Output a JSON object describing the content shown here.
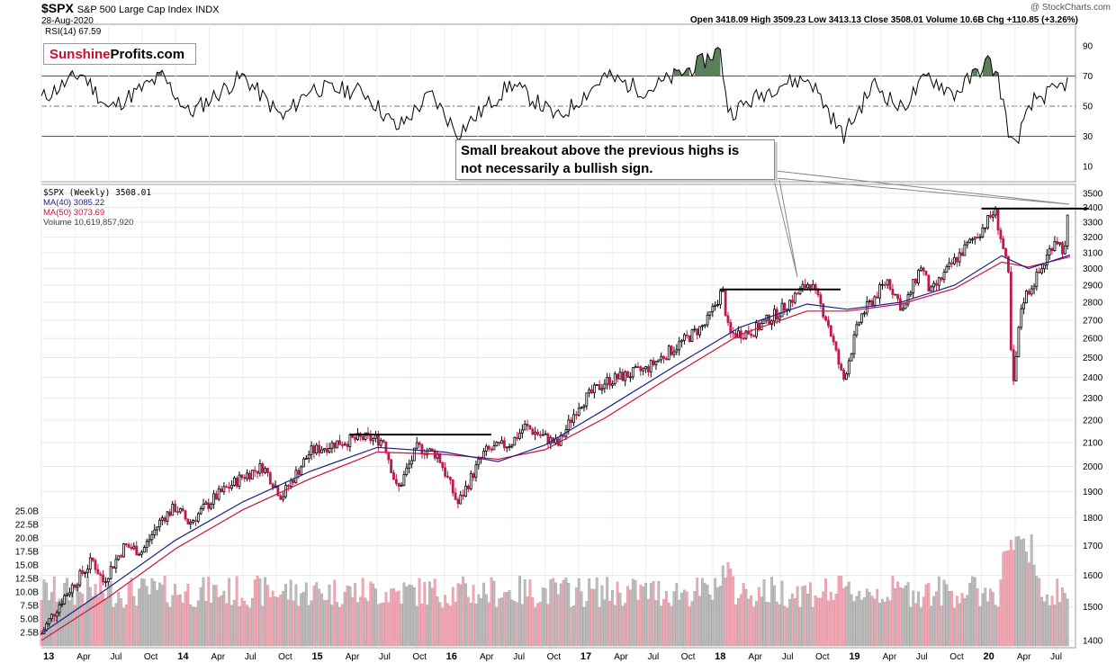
{
  "header": {
    "symbol": "$SPX",
    "name": "S&P 500 Large Cap Index",
    "exchange": "INDX",
    "date": "28-Aug-2020",
    "credit": "@ StockCharts.com",
    "ohlc": "Open 3418.09  High 3509.23  Low 3413.13  Close 3508.01  Volume 10.6B  Chg +110.85 (+3.26%)"
  },
  "logo": {
    "part1": "Sunshine",
    "part2": "Profits.com"
  },
  "rsi": {
    "label": "RSI(14) 67.59",
    "ticks": [
      90,
      70,
      50,
      30,
      10
    ]
  },
  "legend": {
    "price": "$SPX (Weekly) 3508.01",
    "ma40": "MA(40) 3085.22",
    "ma50": "MA(50) 3073.69",
    "volume": "Volume 10,619,857,920"
  },
  "annotation": {
    "line1": "Small breakout above the previous highs is",
    "line2": "not necessarily a bullish sign."
  },
  "colors": {
    "ma40": "#1f1f8f",
    "ma50": "#d01040",
    "up": "#000000",
    "down": "#c0184a",
    "rsi_fill": "#5a7f5a"
  },
  "chart_data": {
    "type": "line",
    "x_ticks": [
      "13",
      "Apr",
      "Jul",
      "Oct",
      "14",
      "Apr",
      "Jul",
      "Oct",
      "15",
      "Apr",
      "Jul",
      "Oct",
      "16",
      "Apr",
      "Jul",
      "Oct",
      "17",
      "Apr",
      "Jul",
      "Oct",
      "18",
      "Apr",
      "Jul",
      "Oct",
      "19",
      "Apr",
      "Jul",
      "Oct",
      "20",
      "Apr",
      "Jul"
    ],
    "price_ticks": [
      3500,
      3400,
      3300,
      3200,
      3100,
      3000,
      2900,
      2800,
      2700,
      2600,
      2500,
      2400,
      2300,
      2200,
      2100,
      2000,
      1900,
      1800,
      1700,
      1600,
      1500,
      1400
    ],
    "volume_ticks": [
      "25.0B",
      "22.5B",
      "20.0B",
      "17.5B",
      "15.0B",
      "12.5B",
      "10.0B",
      "7.5B",
      "5.0B",
      "2.5B"
    ],
    "price_series": [
      {
        "t": 2013.0,
        "v": 1420
      },
      {
        "t": 2013.15,
        "v": 1520
      },
      {
        "t": 2013.38,
        "v": 1650
      },
      {
        "t": 2013.46,
        "v": 1580
      },
      {
        "t": 2013.62,
        "v": 1700
      },
      {
        "t": 2013.75,
        "v": 1680
      },
      {
        "t": 2013.9,
        "v": 1800
      },
      {
        "t": 2014.0,
        "v": 1840
      },
      {
        "t": 2014.1,
        "v": 1780
      },
      {
        "t": 2014.3,
        "v": 1880
      },
      {
        "t": 2014.5,
        "v": 1960
      },
      {
        "t": 2014.65,
        "v": 2000
      },
      {
        "t": 2014.79,
        "v": 1880
      },
      {
        "t": 2015.0,
        "v": 2060
      },
      {
        "t": 2015.2,
        "v": 2100
      },
      {
        "t": 2015.4,
        "v": 2120
      },
      {
        "t": 2015.55,
        "v": 2110
      },
      {
        "t": 2015.65,
        "v": 1900
      },
      {
        "t": 2015.8,
        "v": 2080
      },
      {
        "t": 2015.95,
        "v": 2050
      },
      {
        "t": 2016.1,
        "v": 1850
      },
      {
        "t": 2016.3,
        "v": 2060
      },
      {
        "t": 2016.5,
        "v": 2100
      },
      {
        "t": 2016.6,
        "v": 2170
      },
      {
        "t": 2016.85,
        "v": 2090
      },
      {
        "t": 2017.0,
        "v": 2270
      },
      {
        "t": 2017.2,
        "v": 2380
      },
      {
        "t": 2017.5,
        "v": 2440
      },
      {
        "t": 2017.75,
        "v": 2570
      },
      {
        "t": 2017.95,
        "v": 2680
      },
      {
        "t": 2018.07,
        "v": 2870
      },
      {
        "t": 2018.12,
        "v": 2620
      },
      {
        "t": 2018.3,
        "v": 2640
      },
      {
        "t": 2018.5,
        "v": 2750
      },
      {
        "t": 2018.72,
        "v": 2920
      },
      {
        "t": 2018.85,
        "v": 2700
      },
      {
        "t": 2018.97,
        "v": 2380
      },
      {
        "t": 2019.1,
        "v": 2720
      },
      {
        "t": 2019.3,
        "v": 2930
      },
      {
        "t": 2019.42,
        "v": 2750
      },
      {
        "t": 2019.55,
        "v": 3020
      },
      {
        "t": 2019.62,
        "v": 2850
      },
      {
        "t": 2019.8,
        "v": 3050
      },
      {
        "t": 2020.0,
        "v": 3250
      },
      {
        "t": 2020.1,
        "v": 3380
      },
      {
        "t": 2020.2,
        "v": 2960
      },
      {
        "t": 2020.23,
        "v": 2300
      },
      {
        "t": 2020.3,
        "v": 2800
      },
      {
        "t": 2020.45,
        "v": 3000
      },
      {
        "t": 2020.55,
        "v": 3200
      },
      {
        "t": 2020.62,
        "v": 3100
      },
      {
        "t": 2020.66,
        "v": 3508
      }
    ],
    "ma40": [
      {
        "t": 2013.0,
        "v": 1420
      },
      {
        "t": 2013.5,
        "v": 1560
      },
      {
        "t": 2014.0,
        "v": 1720
      },
      {
        "t": 2014.5,
        "v": 1860
      },
      {
        "t": 2015.0,
        "v": 1980
      },
      {
        "t": 2015.5,
        "v": 2080
      },
      {
        "t": 2016.0,
        "v": 2060
      },
      {
        "t": 2016.4,
        "v": 2020
      },
      {
        "t": 2016.75,
        "v": 2090
      },
      {
        "t": 2017.2,
        "v": 2250
      },
      {
        "t": 2017.7,
        "v": 2450
      },
      {
        "t": 2018.2,
        "v": 2660
      },
      {
        "t": 2018.7,
        "v": 2790
      },
      {
        "t": 2019.0,
        "v": 2760
      },
      {
        "t": 2019.4,
        "v": 2800
      },
      {
        "t": 2019.8,
        "v": 2900
      },
      {
        "t": 2020.15,
        "v": 3080
      },
      {
        "t": 2020.35,
        "v": 3000
      },
      {
        "t": 2020.66,
        "v": 3085
      }
    ],
    "ma50": [
      {
        "t": 2013.0,
        "v": 1400
      },
      {
        "t": 2013.5,
        "v": 1530
      },
      {
        "t": 2014.0,
        "v": 1690
      },
      {
        "t": 2014.5,
        "v": 1830
      },
      {
        "t": 2015.0,
        "v": 1950
      },
      {
        "t": 2015.5,
        "v": 2060
      },
      {
        "t": 2016.0,
        "v": 2050
      },
      {
        "t": 2016.4,
        "v": 2030
      },
      {
        "t": 2016.75,
        "v": 2070
      },
      {
        "t": 2017.2,
        "v": 2210
      },
      {
        "t": 2017.7,
        "v": 2410
      },
      {
        "t": 2018.2,
        "v": 2620
      },
      {
        "t": 2018.7,
        "v": 2750
      },
      {
        "t": 2019.0,
        "v": 2750
      },
      {
        "t": 2019.4,
        "v": 2790
      },
      {
        "t": 2019.8,
        "v": 2880
      },
      {
        "t": 2020.15,
        "v": 3040
      },
      {
        "t": 2020.35,
        "v": 3010
      },
      {
        "t": 2020.66,
        "v": 3074
      }
    ],
    "resistance_lines": [
      {
        "t0": 2015.3,
        "t1": 2016.35,
        "v": 2135
      },
      {
        "t0": 2018.05,
        "t1": 2018.95,
        "v": 2875
      },
      {
        "t0": 2020.0,
        "t1": 2020.8,
        "v": 3393
      }
    ],
    "rsi_series": [
      {
        "t": 2013.0,
        "v": 55
      },
      {
        "t": 2013.3,
        "v": 72
      },
      {
        "t": 2013.5,
        "v": 48
      },
      {
        "t": 2013.9,
        "v": 70
      },
      {
        "t": 2014.1,
        "v": 45
      },
      {
        "t": 2014.5,
        "v": 70
      },
      {
        "t": 2014.8,
        "v": 42
      },
      {
        "t": 2015.0,
        "v": 62
      },
      {
        "t": 2015.4,
        "v": 60
      },
      {
        "t": 2015.65,
        "v": 35
      },
      {
        "t": 2015.9,
        "v": 58
      },
      {
        "t": 2016.1,
        "v": 32
      },
      {
        "t": 2016.5,
        "v": 65
      },
      {
        "t": 2016.85,
        "v": 42
      },
      {
        "t": 2017.2,
        "v": 70
      },
      {
        "t": 2017.5,
        "v": 60
      },
      {
        "t": 2017.9,
        "v": 78
      },
      {
        "t": 2018.05,
        "v": 88
      },
      {
        "t": 2018.12,
        "v": 45
      },
      {
        "t": 2018.5,
        "v": 65
      },
      {
        "t": 2018.72,
        "v": 68
      },
      {
        "t": 2018.97,
        "v": 30
      },
      {
        "t": 2019.2,
        "v": 65
      },
      {
        "t": 2019.4,
        "v": 48
      },
      {
        "t": 2019.6,
        "v": 70
      },
      {
        "t": 2019.8,
        "v": 58
      },
      {
        "t": 2020.05,
        "v": 80
      },
      {
        "t": 2020.12,
        "v": 70
      },
      {
        "t": 2020.23,
        "v": 22
      },
      {
        "t": 2020.4,
        "v": 55
      },
      {
        "t": 2020.55,
        "v": 60
      },
      {
        "t": 2020.66,
        "v": 67.59
      }
    ]
  }
}
